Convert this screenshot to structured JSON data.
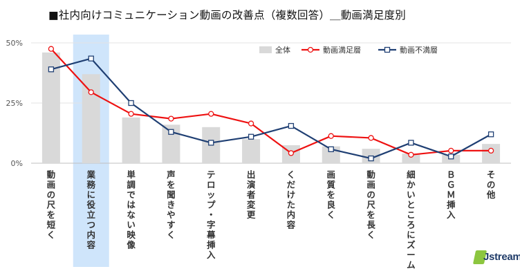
{
  "title": "■社内向けコミュニケーション動画の改善点（複数回答）＿動画満足度別",
  "logo": {
    "brand": "Jstream",
    "mark_color": "#8cc63f",
    "text_color": "#1f3b68"
  },
  "chart_data": {
    "type": "bar",
    "title": "■社内向けコミュニケーション動画の改善点（複数回答）＿動画満足度別",
    "categories": [
      "動画の尺を短く",
      "業務に役立つ内容",
      "単調ではない映像",
      "声を聞きやすく",
      "テロップ・字幕挿入",
      "出演者変更",
      "くだけた内容",
      "画質を良く",
      "動画の尺を長く",
      "細かいところにズーム",
      "ＢＧＭ挿入",
      "その他"
    ],
    "highlight_category": "業務に役立つ内容",
    "y_ticks": [
      "0%",
      "25%",
      "50%"
    ],
    "ylim": [
      0,
      53
    ],
    "grid": true,
    "legend_position": "top-right",
    "series": [
      {
        "name": "全体",
        "kind": "bar",
        "color": "#d9d9d9",
        "values": [
          46,
          37,
          19,
          16,
          15,
          10,
          7.5,
          7,
          6,
          4,
          3.5,
          8
        ]
      },
      {
        "name": "動画満足層",
        "kind": "line",
        "color": "#ee1111",
        "marker": "circle",
        "values": [
          47.5,
          29.5,
          20.5,
          18.5,
          20.5,
          16.5,
          4.2,
          11.3,
          10.5,
          3.5,
          5.2,
          5.2
        ]
      },
      {
        "name": "動画不満層",
        "kind": "line",
        "color": "#1f3f73",
        "marker": "square",
        "values": [
          39,
          43.5,
          25,
          13,
          8.5,
          11,
          15.5,
          5.8,
          2,
          8.5,
          2.8,
          12
        ]
      }
    ]
  }
}
